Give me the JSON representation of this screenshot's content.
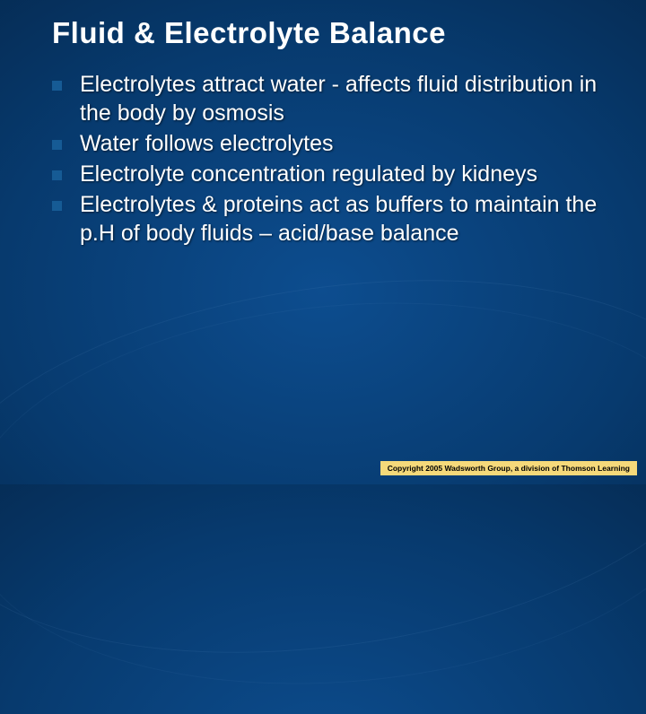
{
  "slide": {
    "title": "Fluid & Electrolyte Balance",
    "title_fontsize": 33,
    "title_color": "#ffffff",
    "bullets": [
      "Electrolytes attract water - affects fluid distribution in the body by osmosis",
      "Water follows electrolytes",
      "Electrolyte concentration regulated by kidneys",
      "Electrolytes & proteins act as buffers to maintain the p.H of body fluids – acid/base balance"
    ],
    "bullet_fontsize": 25,
    "bullet_color": "#ffffff",
    "bullet_marker_color": "#165b95",
    "background_gradient": {
      "inner": "#0d4d8f",
      "mid": "#073a6e",
      "outer": "#021730"
    }
  },
  "copyright": {
    "text": "Copyright 2005 Wadsworth Group, a division of Thomson Learning",
    "fontsize": 8.5,
    "text_color": "#000000",
    "background_color": "#f5d97a"
  }
}
